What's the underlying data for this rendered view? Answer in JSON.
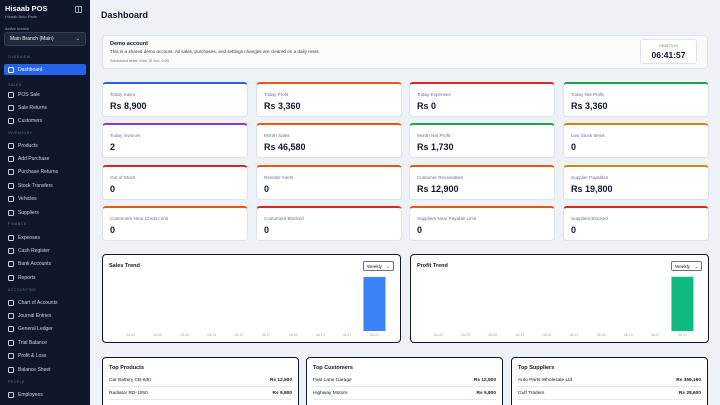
{
  "sidebar": {
    "brand": "Hisaab POS",
    "brand_sub": "Hisaab Auto Parts",
    "branch_label": "Active branch",
    "branch_value": "Main Branch (Main)",
    "sections": [
      {
        "title": "OVERVIEW",
        "items": [
          "Dashboard"
        ]
      },
      {
        "title": "SALES",
        "items": [
          "POS Sale",
          "Sale Returns",
          "Customers"
        ]
      },
      {
        "title": "INVENTORY",
        "items": [
          "Products",
          "Add Purchase",
          "Purchase Returns",
          "Stock Transfers",
          "Vehicles",
          "Suppliers"
        ]
      },
      {
        "title": "FINANCE",
        "items": [
          "Expenses",
          "Cash Register",
          "Bank Accounts",
          "Reports"
        ]
      },
      {
        "title": "ACCOUNTING",
        "items": [
          "Chart of Accounts",
          "Journal Entries",
          "General Ledger",
          "Trial Balance",
          "Profit & Loss",
          "Balance Sheet"
        ]
      },
      {
        "title": "PEOPLE",
        "items": [
          "Employees"
        ]
      }
    ],
    "active_item": "Dashboard"
  },
  "header": {
    "title": "Dashboard"
  },
  "demo": {
    "title": "Demo account",
    "text": "This is a shared demo account. All sales, purchases, and settings changes are cleared on a daily reset.",
    "scheduled": "Scheduled reset: Mon 15 Jun, 0:00",
    "reset_label": "RESETS IN",
    "reset_time": "06:41:57"
  },
  "stats": [
    {
      "label": "Today Sales",
      "value": "Rs 8,900",
      "color": "#2563eb"
    },
    {
      "label": "Today Profit",
      "value": "Rs 3,360",
      "color": "#ea580c"
    },
    {
      "label": "Today Expenses",
      "value": "Rs 0",
      "color": "#dc2626"
    },
    {
      "label": "Today Net Profit",
      "value": "Rs 3,360",
      "color": "#16a34a"
    },
    {
      "label": "Today Invoices",
      "value": "2",
      "color": "#7c3aed"
    },
    {
      "label": "Month Sales",
      "value": "Rs 46,580",
      "color": "#ea580c"
    },
    {
      "label": "Month Net Profit",
      "value": "Rs 1,730",
      "color": "#16a34a"
    },
    {
      "label": "Low Stock Items",
      "value": "0",
      "color": "#ca8a04"
    },
    {
      "label": "Out of Stock",
      "value": "0",
      "color": "#dc2626"
    },
    {
      "label": "Reorder Alerts",
      "value": "0",
      "color": "#ea580c"
    },
    {
      "label": "Customer Receivables",
      "value": "Rs 12,900",
      "color": "#ea580c"
    },
    {
      "label": "Supplier Payables",
      "value": "Rs 19,800",
      "color": "#ca8a04"
    },
    {
      "label": "Customers Near Credit Limit",
      "value": "0",
      "color": "#ea580c"
    },
    {
      "label": "Customers Blocked",
      "value": "0",
      "color": "#dc2626"
    },
    {
      "label": "Suppliers Near Payable Limit",
      "value": "0",
      "color": "#ea580c"
    },
    {
      "label": "Suppliers Blocked",
      "value": "0",
      "color": "#dc2626"
    }
  ],
  "chart_data": [
    {
      "type": "bar",
      "title": "Sales Trend",
      "period": "Weekly",
      "color": "#3b82f6",
      "categories": [
        "04-22",
        "04-29",
        "05-06",
        "05-13",
        "05-20",
        "05-27",
        "06-03",
        "06-10",
        "06-17",
        "06-24"
      ],
      "values": [
        0,
        0,
        0,
        0,
        0,
        0,
        0,
        0,
        0,
        46580
      ],
      "ylim": [
        0,
        50000
      ]
    },
    {
      "type": "bar",
      "title": "Profit Trend",
      "period": "Weekly",
      "color": "#10b981",
      "categories": [
        "04-22",
        "04-29",
        "05-06",
        "05-13",
        "05-20",
        "05-27",
        "06-03",
        "06-10",
        "06-17",
        "06-24"
      ],
      "values": [
        0,
        0,
        0,
        0,
        0,
        0,
        0,
        0,
        0,
        1730
      ],
      "ylim": [
        0,
        1850
      ]
    }
  ],
  "top_products": {
    "title": "Top Products",
    "rows": [
      {
        "name": "Car Battery CB-630",
        "amount": "Rs 12,500"
      },
      {
        "name": "Radiator RD-1050",
        "amount": "Rs 9,800"
      }
    ]
  },
  "top_customers": {
    "title": "Top Customers",
    "rows": [
      {
        "name": "Fast Lane Garage",
        "amount": "Rs 12,500"
      },
      {
        "name": "Highway Motors",
        "amount": "Rs 9,800"
      }
    ]
  },
  "top_suppliers": {
    "title": "Top Suppliers",
    "rows": [
      {
        "name": "Auto Parts Wholesale Ltd",
        "amount": "Rs 359,160"
      },
      {
        "name": "Gulf Traders",
        "amount": "Rs 28,600"
      }
    ]
  }
}
